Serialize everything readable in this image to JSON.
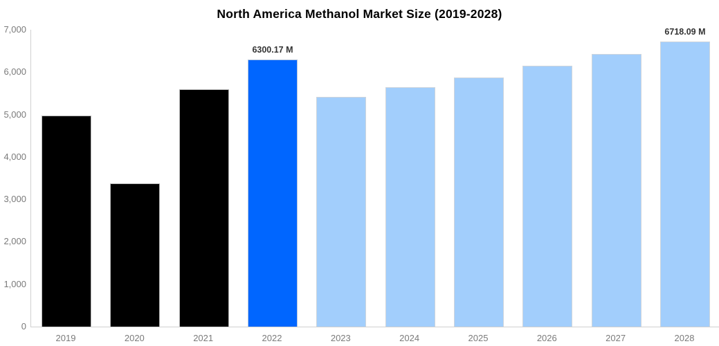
{
  "chart_data": {
    "type": "bar",
    "title": "North America Methanol Market Size (2019-2028)",
    "categories": [
      "2019",
      "2020",
      "2021",
      "2022",
      "2023",
      "2024",
      "2025",
      "2026",
      "2027",
      "2028"
    ],
    "values": [
      4970,
      3380,
      5590,
      6300.17,
      5420,
      5640,
      5880,
      6150,
      6430,
      6718.09
    ],
    "annotations": [
      "",
      "",
      "",
      "6300.17 M",
      "",
      "",
      "",
      "",
      "",
      "6718.09 M"
    ],
    "bar_colors": [
      "#000000",
      "#000000",
      "#000000",
      "#0066ff",
      "#a2cefc",
      "#a2cefc",
      "#a2cefc",
      "#a2cefc",
      "#a2cefc",
      "#a2cefc"
    ],
    "xlabel": "",
    "ylabel": "",
    "ylim": [
      0,
      7000
    ],
    "yticks": [
      {
        "value": 0,
        "label": "0"
      },
      {
        "value": 1000,
        "label": "1,000"
      },
      {
        "value": 2000,
        "label": "2,000"
      },
      {
        "value": 3000,
        "label": "3,000"
      },
      {
        "value": 4000,
        "label": "4,000"
      },
      {
        "value": 5000,
        "label": "5,000"
      },
      {
        "value": 6000,
        "label": "6,000"
      },
      {
        "value": 7000,
        "label": "7,000"
      }
    ],
    "grid": "off",
    "legend": "none"
  },
  "colors": {
    "historical_bar": "#000000",
    "highlight_bar": "#0066ff",
    "forecast_bar": "#a2cefc",
    "axis_line": "#cfcfcf",
    "tick_text": "#7a7a7a",
    "value_label_text": "#333333",
    "title_text": "#000000",
    "background": "#ffffff"
  }
}
